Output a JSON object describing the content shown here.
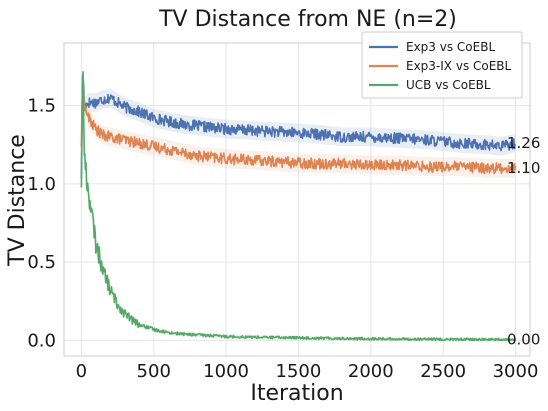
{
  "chart_data": {
    "type": "line",
    "title": "TV Distance from NE (n=2)",
    "xlabel": "Iteration",
    "ylabel": "TV Distance",
    "xlim": [
      -120,
      3100
    ],
    "ylim": [
      -0.1,
      1.9
    ],
    "xticks": [
      0,
      500,
      1000,
      1500,
      2000,
      2500,
      3000
    ],
    "xtick_labels": [
      "0",
      "500",
      "1000",
      "1500",
      "2000",
      "2500",
      "3000"
    ],
    "yticks": [
      0.0,
      0.5,
      1.0,
      1.5
    ],
    "ytick_labels": [
      "0.0",
      "0.5",
      "1.0",
      "1.5"
    ],
    "grid": true,
    "legend_position": "top-right",
    "series": [
      {
        "name": "Exp3 vs CoEBL",
        "color": "#4c72b0",
        "end_label": "1.26",
        "x": [
          0,
          10,
          20,
          50,
          100,
          150,
          200,
          250,
          300,
          400,
          500,
          600,
          700,
          800,
          900,
          1000,
          1200,
          1400,
          1600,
          1800,
          2000,
          2200,
          2400,
          2600,
          2800,
          2900,
          3000
        ],
        "y": [
          1.05,
          1.75,
          1.5,
          1.52,
          1.52,
          1.54,
          1.55,
          1.52,
          1.49,
          1.46,
          1.42,
          1.4,
          1.38,
          1.37,
          1.36,
          1.35,
          1.34,
          1.33,
          1.32,
          1.3,
          1.3,
          1.29,
          1.28,
          1.26,
          1.25,
          1.24,
          1.26
        ]
      },
      {
        "name": "Exp3-IX vs CoEBL",
        "color": "#dd8452",
        "end_label": "1.10",
        "x": [
          0,
          10,
          20,
          50,
          100,
          150,
          200,
          250,
          300,
          400,
          500,
          600,
          700,
          800,
          900,
          1000,
          1200,
          1400,
          1600,
          1800,
          2000,
          2200,
          2400,
          2600,
          2800,
          2900,
          3000
        ],
        "y": [
          1.25,
          1.7,
          1.5,
          1.42,
          1.35,
          1.31,
          1.3,
          1.29,
          1.28,
          1.26,
          1.24,
          1.22,
          1.2,
          1.18,
          1.17,
          1.16,
          1.15,
          1.14,
          1.13,
          1.13,
          1.12,
          1.12,
          1.11,
          1.11,
          1.1,
          1.1,
          1.1
        ]
      },
      {
        "name": "UCB vs CoEBL",
        "color": "#55a868",
        "end_label": "0.00",
        "x": [
          0,
          10,
          20,
          40,
          60,
          80,
          100,
          150,
          200,
          250,
          300,
          350,
          400,
          500,
          600,
          700,
          800,
          900,
          1000,
          1200,
          1400,
          1600,
          1800,
          2000,
          2500,
          3000
        ],
        "y": [
          1.0,
          1.8,
          1.2,
          1.0,
          0.88,
          0.75,
          0.62,
          0.45,
          0.32,
          0.23,
          0.17,
          0.13,
          0.1,
          0.07,
          0.05,
          0.04,
          0.035,
          0.03,
          0.025,
          0.02,
          0.018,
          0.015,
          0.012,
          0.01,
          0.006,
          0.004
        ]
      }
    ]
  }
}
